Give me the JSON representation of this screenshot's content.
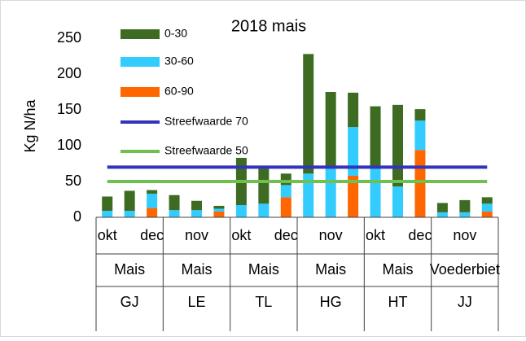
{
  "chart_data": {
    "type": "bar",
    "stacked": true,
    "title": "2018 mais",
    "y_label": "Kg N/ha",
    "categories": [
      "okt",
      null,
      "dec",
      null,
      "nov",
      null,
      "okt",
      null,
      "dec",
      null,
      "nov",
      null,
      "okt",
      null,
      "dec",
      null,
      "nov",
      null
    ],
    "categories_level2": [
      "Mais",
      "Mais",
      "Mais",
      "Mais",
      "Mais",
      "Voederbiet"
    ],
    "categories_level3": [
      "GJ",
      "LE",
      "TL",
      "HG",
      "HT",
      "JJ"
    ],
    "series": [
      {
        "name": "60-90",
        "color": "#ff6600",
        "values": [
          0,
          0,
          13,
          0,
          0,
          8,
          0,
          0,
          28,
          0,
          0,
          58,
          0,
          0,
          94,
          0,
          0,
          8
        ]
      },
      {
        "name": "30-60",
        "color": "#33ccff",
        "values": [
          9,
          9,
          20,
          10,
          10,
          4,
          17,
          19,
          17,
          61,
          68,
          68,
          68,
          43,
          41,
          7,
          7,
          11
        ]
      },
      {
        "name": "0-30",
        "color": "#3d6b21",
        "values": [
          20,
          28,
          5,
          21,
          13,
          4,
          66,
          49,
          16,
          167,
          107,
          48,
          87,
          114,
          16,
          13,
          17,
          9
        ]
      }
    ],
    "lines": [
      {
        "name": "Streefwaarde 70",
        "color": "#3333bb",
        "values": [
          70,
          70,
          70,
          70,
          70,
          70,
          70,
          70,
          70,
          70,
          70,
          70,
          70,
          70,
          70,
          70,
          70,
          70
        ]
      },
      {
        "name": "Streefwaarde 50",
        "color": "#70c050",
        "values": [
          50,
          50,
          50,
          50,
          50,
          50,
          50,
          50,
          50,
          50,
          50,
          50,
          50,
          50,
          50,
          50,
          50,
          50
        ]
      }
    ],
    "legend_order": [
      "0-30",
      "30-60",
      "60-90",
      "Streefwaarde 70",
      "Streefwaarde 50"
    ],
    "ylim": [
      0,
      250
    ],
    "yticks": [
      0,
      50,
      100,
      150,
      200,
      250
    ],
    "grid": false,
    "legend": "top-left"
  }
}
